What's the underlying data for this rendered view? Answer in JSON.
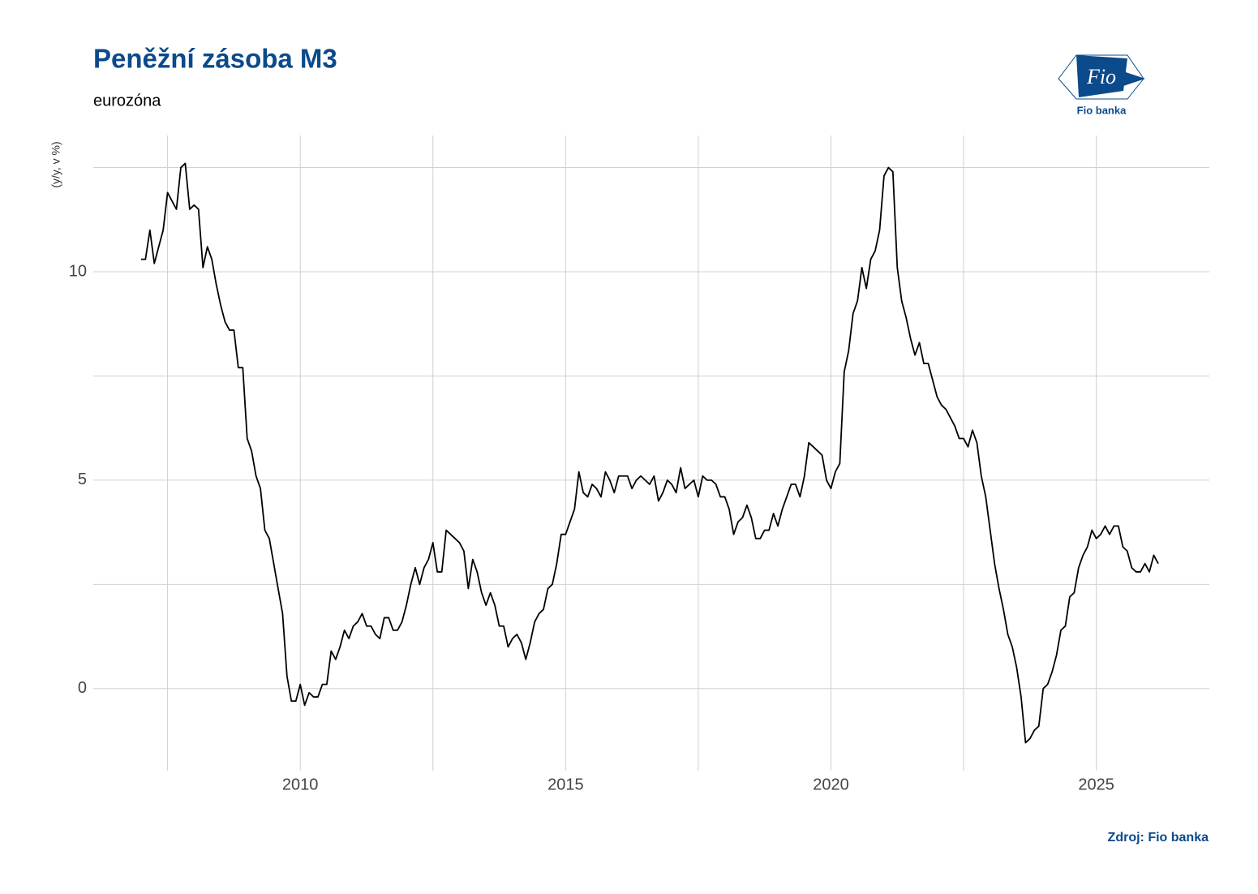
{
  "chart_data": {
    "type": "line",
    "title": "Peněžní zásoba M3",
    "subtitle": "eurozóna",
    "y_label": "(y/y, v %)",
    "caption": "Zdroj: Fio banka",
    "logo": {
      "mark": "Fio",
      "name": "Fio banka"
    },
    "xlim": [
      2006.1,
      2027.13
    ],
    "ylim": [
      -1.97,
      13.27
    ],
    "xticks": [
      2010,
      2015,
      2020,
      2025
    ],
    "x_minor_ticks": [
      2007.5,
      2012.5,
      2017.5,
      2022.5
    ],
    "yticks": [
      0,
      5,
      10
    ],
    "y_minor_ticks": [
      2.5,
      7.5,
      12.5
    ],
    "grid": true,
    "x": [
      2007,
      2007.083,
      2007.167,
      2007.25,
      2007.333,
      2007.417,
      2007.5,
      2007.583,
      2007.667,
      2007.75,
      2007.833,
      2007.917,
      2008,
      2008.083,
      2008.167,
      2008.25,
      2008.333,
      2008.417,
      2008.5,
      2008.583,
      2008.667,
      2008.75,
      2008.833,
      2008.917,
      2009,
      2009.083,
      2009.167,
      2009.25,
      2009.333,
      2009.417,
      2009.5,
      2009.583,
      2009.667,
      2009.75,
      2009.833,
      2009.917,
      2010,
      2010.083,
      2010.167,
      2010.25,
      2010.333,
      2010.417,
      2010.5,
      2010.583,
      2010.667,
      2010.75,
      2010.833,
      2010.917,
      2011,
      2011.083,
      2011.167,
      2011.25,
      2011.333,
      2011.417,
      2011.5,
      2011.583,
      2011.667,
      2011.75,
      2011.833,
      2011.917,
      2012,
      2012.083,
      2012.167,
      2012.25,
      2012.333,
      2012.417,
      2012.5,
      2012.583,
      2012.667,
      2012.75,
      2012.833,
      2012.917,
      2013,
      2013.083,
      2013.167,
      2013.25,
      2013.333,
      2013.417,
      2013.5,
      2013.583,
      2013.667,
      2013.75,
      2013.833,
      2013.917,
      2014,
      2014.083,
      2014.167,
      2014.25,
      2014.333,
      2014.417,
      2014.5,
      2014.583,
      2014.667,
      2014.75,
      2014.833,
      2014.917,
      2015,
      2015.083,
      2015.167,
      2015.25,
      2015.333,
      2015.417,
      2015.5,
      2015.583,
      2015.667,
      2015.75,
      2015.833,
      2015.917,
      2016,
      2016.083,
      2016.167,
      2016.25,
      2016.333,
      2016.417,
      2016.5,
      2016.583,
      2016.667,
      2016.75,
      2016.833,
      2016.917,
      2017,
      2017.083,
      2017.167,
      2017.25,
      2017.333,
      2017.417,
      2017.5,
      2017.583,
      2017.667,
      2017.75,
      2017.833,
      2017.917,
      2018,
      2018.083,
      2018.167,
      2018.25,
      2018.333,
      2018.417,
      2018.5,
      2018.583,
      2018.667,
      2018.75,
      2018.833,
      2018.917,
      2019,
      2019.083,
      2019.167,
      2019.25,
      2019.333,
      2019.417,
      2019.5,
      2019.583,
      2019.667,
      2019.75,
      2019.833,
      2019.917,
      2020,
      2020.083,
      2020.167,
      2020.25,
      2020.333,
      2020.417,
      2020.5,
      2020.583,
      2020.667,
      2020.75,
      2020.833,
      2020.917,
      2021,
      2021.083,
      2021.167,
      2021.25,
      2021.333,
      2021.417,
      2021.5,
      2021.583,
      2021.667,
      2021.75,
      2021.833,
      2021.917,
      2022,
      2022.083,
      2022.167,
      2022.25,
      2022.333,
      2022.417,
      2022.5,
      2022.583,
      2022.667,
      2022.75,
      2022.833,
      2022.917,
      2023,
      2023.083,
      2023.167,
      2023.25,
      2023.333,
      2023.417,
      2023.5,
      2023.583,
      2023.667,
      2023.75,
      2023.833,
      2023.917,
      2024,
      2024.083,
      2024.167,
      2024.25,
      2024.333,
      2024.417,
      2024.5,
      2024.583,
      2024.667,
      2024.75,
      2024.833,
      2024.917,
      2025,
      2025.083,
      2025.167,
      2025.25,
      2025.333,
      2025.417,
      2025.5,
      2025.583,
      2025.667,
      2025.75,
      2025.833,
      2025.917,
      2026,
      2026.083,
      2026.167
    ],
    "color": "#000000",
    "values": [
      10.3,
      10.3,
      11.0,
      10.2,
      10.6,
      11.0,
      11.9,
      11.7,
      11.5,
      12.5,
      12.6,
      11.5,
      11.6,
      11.5,
      10.1,
      10.6,
      10.3,
      9.7,
      9.2,
      8.8,
      8.6,
      8.6,
      7.7,
      7.7,
      6.0,
      5.7,
      5.1,
      4.8,
      3.8,
      3.6,
      3.0,
      2.4,
      1.8,
      0.3,
      -0.3,
      -0.3,
      0.1,
      -0.4,
      -0.1,
      -0.2,
      -0.2,
      0.1,
      0.1,
      0.9,
      0.7,
      1.0,
      1.4,
      1.2,
      1.5,
      1.6,
      1.8,
      1.5,
      1.5,
      1.3,
      1.2,
      1.7,
      1.7,
      1.4,
      1.4,
      1.6,
      2.0,
      2.5,
      2.9,
      2.5,
      2.9,
      3.1,
      3.5,
      2.8,
      2.8,
      3.8,
      3.7,
      3.6,
      3.5,
      3.3,
      2.4,
      3.1,
      2.8,
      2.3,
      2.0,
      2.3,
      2.0,
      1.5,
      1.5,
      1.0,
      1.2,
      1.3,
      1.1,
      0.7,
      1.1,
      1.6,
      1.8,
      1.9,
      2.4,
      2.5,
      3.0,
      3.7,
      3.7,
      4.0,
      4.3,
      5.2,
      4.7,
      4.6,
      4.9,
      4.8,
      4.6,
      5.2,
      5.0,
      4.7,
      5.1,
      5.1,
      5.1,
      4.8,
      5.0,
      5.1,
      5.0,
      4.9,
      5.1,
      4.5,
      4.7,
      5.0,
      4.9,
      4.7,
      5.3,
      4.8,
      4.9,
      5.0,
      4.6,
      5.1,
      5.0,
      5.0,
      4.9,
      4.6,
      4.6,
      4.3,
      3.7,
      4.0,
      4.1,
      4.4,
      4.1,
      3.6,
      3.6,
      3.8,
      3.8,
      4.2,
      3.9,
      4.3,
      4.6,
      4.9,
      4.9,
      4.6,
      5.1,
      5.9,
      5.8,
      5.7,
      5.6,
      5.0,
      4.8,
      5.2,
      5.4,
      7.6,
      8.1,
      9.0,
      9.3,
      10.1,
      9.6,
      10.3,
      10.5,
      11.0,
      12.3,
      12.5,
      12.4,
      10.1,
      9.3,
      8.9,
      8.4,
      8.0,
      8.3,
      7.8,
      7.8,
      7.4,
      7.0,
      6.8,
      6.7,
      6.5,
      6.3,
      6.0,
      6.0,
      5.8,
      6.2,
      5.9,
      5.1,
      4.6,
      3.8,
      3.0,
      2.4,
      1.9,
      1.3,
      1.0,
      0.5,
      -0.2,
      -1.3,
      -1.2,
      -1.0,
      -0.9,
      0.0,
      0.1,
      0.4,
      0.8,
      1.4,
      1.5,
      2.2,
      2.3,
      2.9,
      3.2,
      3.4,
      3.8,
      3.6,
      3.7,
      3.9,
      3.7,
      3.9,
      3.9,
      3.4,
      3.3,
      2.9,
      2.8,
      2.8,
      3.0,
      2.8,
      3.2,
      3.0
    ]
  }
}
